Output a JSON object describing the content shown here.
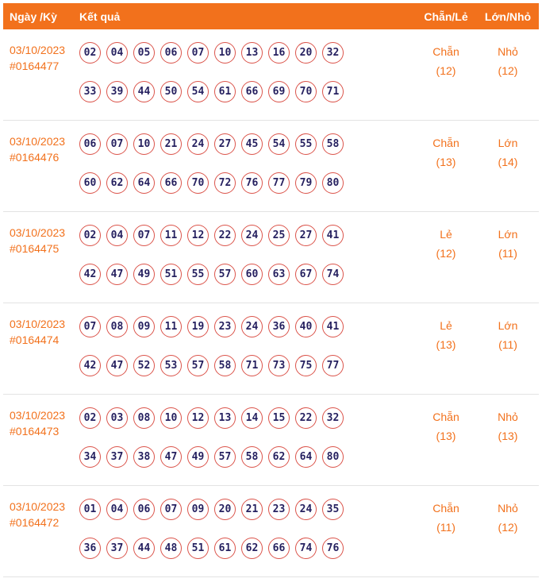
{
  "header": {
    "date_label": "Ngày /Kỳ",
    "result_label": "Kết quả",
    "parity_label": "Chẵn/Lẻ",
    "size_label": "Lớn/Nhỏ"
  },
  "rows": [
    {
      "date": "03/10/2023",
      "draw_id": "#0164477",
      "numbers_line1": [
        "02",
        "04",
        "05",
        "06",
        "07",
        "10",
        "13",
        "16",
        "20",
        "32"
      ],
      "numbers_line2": [
        "33",
        "39",
        "44",
        "50",
        "54",
        "61",
        "66",
        "69",
        "70",
        "71"
      ],
      "parity": "Chẵn",
      "parity_count": "(12)",
      "size": "Nhỏ",
      "size_count": "(12)"
    },
    {
      "date": "03/10/2023",
      "draw_id": "#0164476",
      "numbers_line1": [
        "06",
        "07",
        "10",
        "21",
        "24",
        "27",
        "45",
        "54",
        "55",
        "58"
      ],
      "numbers_line2": [
        "60",
        "62",
        "64",
        "66",
        "70",
        "72",
        "76",
        "77",
        "79",
        "80"
      ],
      "parity": "Chẵn",
      "parity_count": "(13)",
      "size": "Lớn",
      "size_count": "(14)"
    },
    {
      "date": "03/10/2023",
      "draw_id": "#0164475",
      "numbers_line1": [
        "02",
        "04",
        "07",
        "11",
        "12",
        "22",
        "24",
        "25",
        "27",
        "41"
      ],
      "numbers_line2": [
        "42",
        "47",
        "49",
        "51",
        "55",
        "57",
        "60",
        "63",
        "67",
        "74"
      ],
      "parity": "Lẻ",
      "parity_count": "(12)",
      "size": "Lớn",
      "size_count": "(11)"
    },
    {
      "date": "03/10/2023",
      "draw_id": "#0164474",
      "numbers_line1": [
        "07",
        "08",
        "09",
        "11",
        "19",
        "23",
        "24",
        "36",
        "40",
        "41"
      ],
      "numbers_line2": [
        "42",
        "47",
        "52",
        "53",
        "57",
        "58",
        "71",
        "73",
        "75",
        "77"
      ],
      "parity": "Lẻ",
      "parity_count": "(13)",
      "size": "Lớn",
      "size_count": "(11)"
    },
    {
      "date": "03/10/2023",
      "draw_id": "#0164473",
      "numbers_line1": [
        "02",
        "03",
        "08",
        "10",
        "12",
        "13",
        "14",
        "15",
        "22",
        "32"
      ],
      "numbers_line2": [
        "34",
        "37",
        "38",
        "47",
        "49",
        "57",
        "58",
        "62",
        "64",
        "80"
      ],
      "parity": "Chẵn",
      "parity_count": "(13)",
      "size": "Nhỏ",
      "size_count": "(13)"
    },
    {
      "date": "03/10/2023",
      "draw_id": "#0164472",
      "numbers_line1": [
        "01",
        "04",
        "06",
        "07",
        "09",
        "20",
        "21",
        "23",
        "24",
        "35"
      ],
      "numbers_line2": [
        "36",
        "37",
        "44",
        "48",
        "51",
        "61",
        "62",
        "66",
        "74",
        "76"
      ],
      "parity": "Chẵn",
      "parity_count": "(11)",
      "size": "Nhỏ",
      "size_count": "(12)"
    }
  ],
  "colors": {
    "accent": "#F2711C",
    "ball_border": "#DB544B",
    "ball_text": "#262160",
    "separator": "#E3E3E3"
  }
}
